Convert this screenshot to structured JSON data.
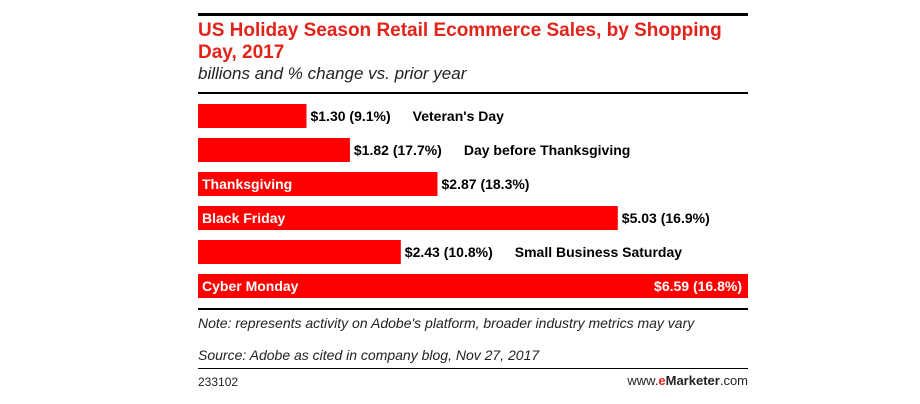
{
  "chart_data": {
    "type": "bar",
    "orientation": "horizontal",
    "title": "US Holiday Season Retail Ecommerce Sales, by Shopping Day, 2017",
    "subtitle": "billions and % change vs. prior year",
    "categories": [
      "Veteran's Day",
      "Day before Thanksgiving",
      "Thanksgiving",
      "Black Friday",
      "Small Business Saturday",
      "Cyber Monday"
    ],
    "values": [
      1.3,
      1.82,
      2.87,
      5.03,
      2.43,
      6.59
    ],
    "value_labels": [
      "$1.30 (9.1%)",
      "$1.82 (17.7%)",
      "$2.87 (18.3%)",
      "$5.03 (16.9%)",
      "$2.43 (10.8%)",
      "$6.59 (16.8%)"
    ],
    "label_inside_bar": [
      false,
      false,
      true,
      true,
      false,
      true
    ],
    "xlim": [
      0,
      6.59
    ],
    "bar_color": "#ff0000",
    "grid": false,
    "legend": "none"
  },
  "note": "Note: represents activity on Adobe's platform, broader industry metrics may vary",
  "source": "Source: Adobe as cited in company blog, Nov 27, 2017",
  "chart_id": "233102",
  "brand": {
    "prefix": "www.",
    "e": "e",
    "name": "Marketer",
    "suffix": ".com"
  }
}
